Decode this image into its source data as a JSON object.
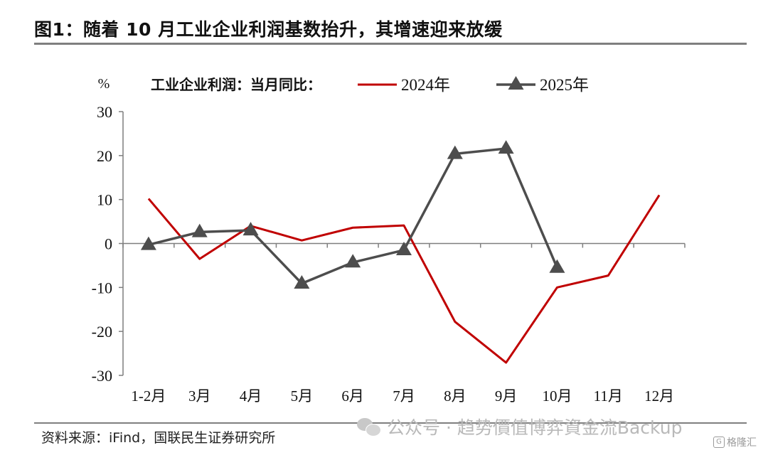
{
  "title": "图1：随着 10 月工业企业利润基数抬升，其增速迎来放缓",
  "source": "资料来源：iFind，国联民生证券研究所",
  "watermark": "公众号 · 趋势價值博弈資金流Backup",
  "corner_logo": "格隆汇",
  "icons": [
    "wechat-icon",
    "gelonghui-logo-icon"
  ],
  "chart_data": {
    "type": "line",
    "ylabel": "%",
    "legend_title": "工业企业利润：当月同比：",
    "legend_position": "top",
    "categories": [
      "1-2月",
      "3月",
      "4月",
      "5月",
      "6月",
      "7月",
      "8月",
      "9月",
      "10月",
      "11月",
      "12月"
    ],
    "ylim": [
      -30,
      30
    ],
    "yticks": [
      30,
      20,
      10,
      0,
      -10,
      -20,
      -30
    ],
    "grid": false,
    "series": [
      {
        "name": "2024年",
        "color": "#c00000",
        "marker": "none",
        "values": [
          10.2,
          -3.5,
          4.0,
          0.7,
          3.6,
          4.1,
          -17.8,
          -27.1,
          -10.0,
          -7.3,
          11.0
        ]
      },
      {
        "name": "2025年",
        "color": "#4d4d4d",
        "marker": "triangle",
        "values": [
          -0.3,
          2.6,
          3.0,
          -9.1,
          -4.3,
          -1.5,
          20.4,
          21.6,
          -5.5,
          null,
          null
        ]
      }
    ]
  }
}
